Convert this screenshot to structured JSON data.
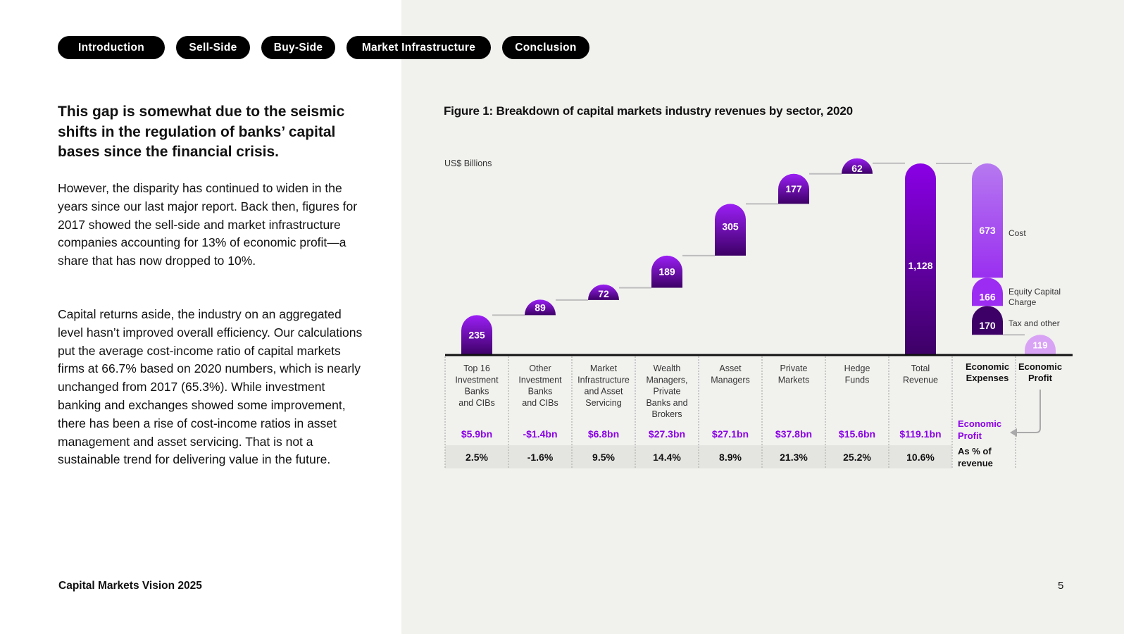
{
  "nav": {
    "tabs": [
      {
        "label": "Introduction"
      },
      {
        "label": "Sell-Side"
      },
      {
        "label": "Buy-Side"
      },
      {
        "label": "Market Infrastructure"
      },
      {
        "label": "Conclusion"
      }
    ]
  },
  "article": {
    "headline": "This gap is somewhat due to the seismic shifts in the regulation of banks’ capital bases since the financial crisis.",
    "paragraph1": "However, the disparity has continued to widen in the years since our last major report. Back then, figures for 2017 showed the sell-side and market infrastructure companies accounting for 13% of economic profit—a share that has now dropped to 10%.",
    "paragraph2": "Capital returns aside, the industry on an aggregated level hasn’t improved overall efficiency. Our calculations put the average cost-income ratio of capital markets firms at 66.7% based on 2020 numbers, which is nearly unchanged from 2017 (65.3%). While investment banking and exchanges showed some improvement, there has been a rise of cost-income ratios in asset management and asset servicing. That is not a sustainable trend for delivering value in the future."
  },
  "footer": {
    "title": "Capital Markets Vision 2025",
    "page": "5"
  },
  "colors": {
    "accent": "#8a00e6",
    "bar_top": "#9b1ff5",
    "bar_bottom": "#3d0066",
    "expense_light": "#b679f0",
    "profit_light": "#d9a3f5",
    "panel_bg": "#f1f1ee"
  },
  "chart_data": {
    "type": "waterfall",
    "title": "Figure 1: Breakdown of capital markets industry revenues by sector, 2020",
    "ylabel": "US$ Billions",
    "ylim": [
      0,
      1128
    ],
    "categories": [
      "Top 16 Investment Banks and CIBs",
      "Other Investment Banks and CIBs",
      "Market Infrastructure and Asset Servicing",
      "Wealth Managers, Private Banks and Brokers",
      "Asset Managers",
      "Private Markets",
      "Hedge Funds",
      "Total Revenue"
    ],
    "values": [
      235,
      89,
      72,
      189,
      305,
      177,
      62,
      1128
    ],
    "value_labels": [
      "235",
      "89",
      "72",
      "189",
      "305",
      "177",
      "62",
      "1,128"
    ],
    "economic_profit": [
      "$5.9bn",
      "-$1.4bn",
      "$6.8bn",
      "$27.3bn",
      "$27.1bn",
      "$37.8bn",
      "$15.6bn",
      "$119.1bn"
    ],
    "profit_pct_revenue": [
      "2.5%",
      "-1.6%",
      "9.5%",
      "14.4%",
      "8.9%",
      "21.3%",
      "25.2%",
      "10.6%"
    ],
    "economic_expenses": {
      "label": "Economic Expenses",
      "components": [
        {
          "name": "Tax and other",
          "value": 170,
          "label": "170"
        },
        {
          "name": "Equity Capital Charge",
          "value": 166,
          "label": "166"
        },
        {
          "name": "Cost",
          "value": 673,
          "label": "673"
        }
      ]
    },
    "economic_profit_total": {
      "label": "Economic Profit",
      "value": 119,
      "value_label": "119"
    },
    "row_labels": {
      "profit": "Economic Profit",
      "pct": "As % of revenue"
    }
  }
}
